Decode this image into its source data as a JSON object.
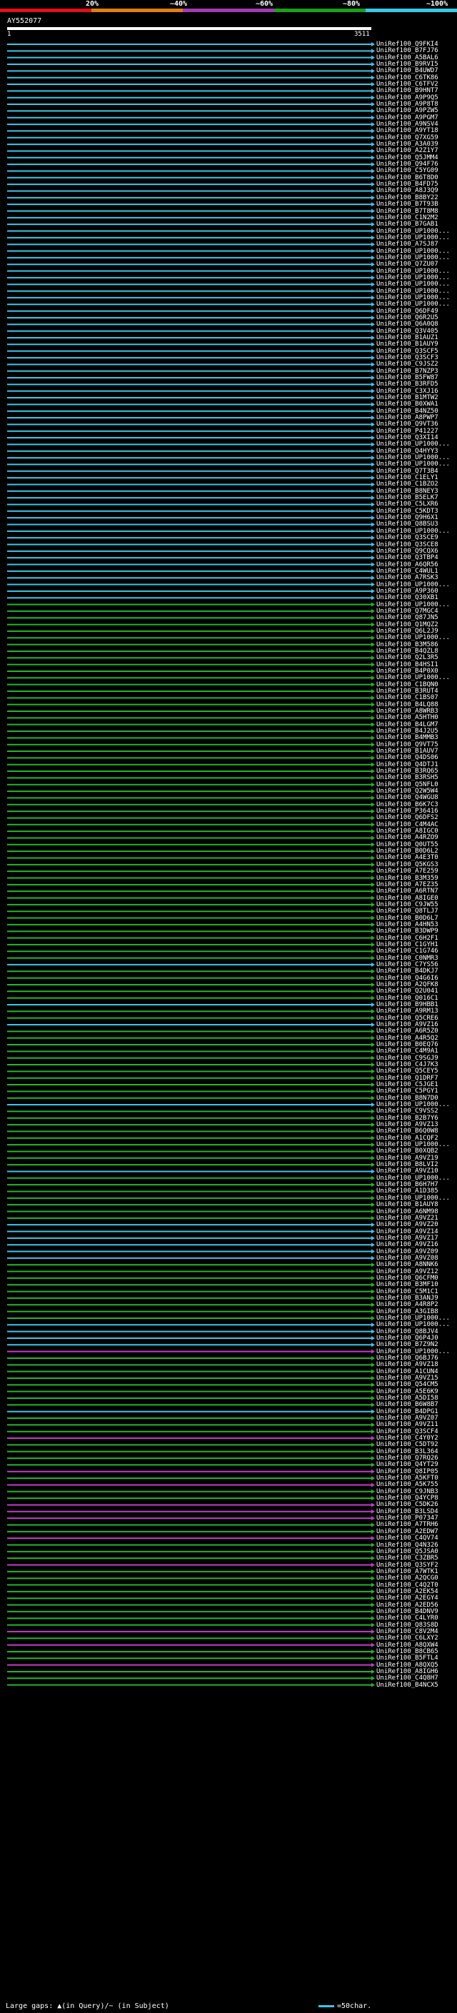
{
  "header": {
    "scale_labels": [
      "20%",
      "~40%",
      "~60%",
      "~80%",
      "~100%"
    ],
    "scale_colors": [
      "#e0111b",
      "#e07f10",
      "#a23cb4",
      "#1a9f1a",
      "#39c8e8"
    ]
  },
  "query": {
    "title": "AY552077",
    "start": "1",
    "end": "3511"
  },
  "colors": {
    "cyan": "#39c8e8",
    "green": "#22b62c",
    "magenta": "#c23cc8",
    "gray": "#555555"
  },
  "hits": [
    {
      "id": "UniRef100_Q9FKI4",
      "c": "cyan"
    },
    {
      "id": "UniRef100_B7FJ76",
      "c": "cyan"
    },
    {
      "id": "UniRef100_A5BAL6",
      "c": "cyan"
    },
    {
      "id": "UniRef100_B9RVI5",
      "c": "cyan"
    },
    {
      "id": "UniRef100_B4UWD7",
      "c": "cyan"
    },
    {
      "id": "UniRef100_C6TK86",
      "c": "cyan"
    },
    {
      "id": "UniRef100_C6TFV2",
      "c": "cyan"
    },
    {
      "id": "UniRef100_B9HNT7",
      "c": "cyan"
    },
    {
      "id": "UniRef100_A9P9Q5",
      "c": "cyan"
    },
    {
      "id": "UniRef100_A9P8T8",
      "c": "cyan"
    },
    {
      "id": "UniRef100_A9PZW5",
      "c": "cyan"
    },
    {
      "id": "UniRef100_A9PGM7",
      "c": "cyan"
    },
    {
      "id": "UniRef100_A9NSV4",
      "c": "cyan"
    },
    {
      "id": "UniRef100_A9YT18",
      "c": "cyan"
    },
    {
      "id": "UniRef100_Q7XG59",
      "c": "cyan"
    },
    {
      "id": "UniRef100_A3A039",
      "c": "cyan"
    },
    {
      "id": "UniRef100_A2Z1Y7",
      "c": "cyan"
    },
    {
      "id": "UniRef100_Q5JMM4",
      "c": "cyan"
    },
    {
      "id": "UniRef100_Q94F76",
      "c": "cyan"
    },
    {
      "id": "UniRef100_C5YG09",
      "c": "cyan"
    },
    {
      "id": "UniRef100_B6T8D0",
      "c": "cyan"
    },
    {
      "id": "UniRef100_B4FD75",
      "c": "cyan"
    },
    {
      "id": "UniRef100_A8J3Q9",
      "c": "cyan"
    },
    {
      "id": "UniRef100_B8BY22",
      "c": "cyan"
    },
    {
      "id": "UniRef100_B7T93B",
      "c": "cyan"
    },
    {
      "id": "UniRef100_B7T8M8",
      "c": "cyan"
    },
    {
      "id": "UniRef100_C1N2M2",
      "c": "cyan"
    },
    {
      "id": "UniRef100_B7GAB1",
      "c": "cyan"
    },
    {
      "id": "UniRef100_UP1000...",
      "c": "cyan"
    },
    {
      "id": "UniRef100_UP1000...",
      "c": "cyan"
    },
    {
      "id": "UniRef100_A7SJ87",
      "c": "cyan"
    },
    {
      "id": "UniRef100_UP1000...",
      "c": "cyan"
    },
    {
      "id": "UniRef100_UP1000...",
      "c": "cyan"
    },
    {
      "id": "UniRef100_Q7ZU07",
      "c": "cyan"
    },
    {
      "id": "UniRef100_UP1000...",
      "c": "cyan"
    },
    {
      "id": "UniRef100_UP1000...",
      "c": "cyan"
    },
    {
      "id": "UniRef100_UP1000...",
      "c": "cyan"
    },
    {
      "id": "UniRef100_UP1000...",
      "c": "cyan"
    },
    {
      "id": "UniRef100_UP1000...",
      "c": "cyan"
    },
    {
      "id": "UniRef100_UP1000...",
      "c": "cyan"
    },
    {
      "id": "UniRef100_Q6DF49",
      "c": "cyan"
    },
    {
      "id": "UniRef100_Q6R2U5",
      "c": "cyan"
    },
    {
      "id": "UniRef100_Q6A0Q8",
      "c": "cyan"
    },
    {
      "id": "UniRef100_Q3V405",
      "c": "cyan"
    },
    {
      "id": "UniRef100_B1AUZ1",
      "c": "cyan"
    },
    {
      "id": "UniRef100_B1AUY9",
      "c": "cyan"
    },
    {
      "id": "UniRef100_Q3SCF5",
      "c": "cyan"
    },
    {
      "id": "UniRef100_Q3SCF3",
      "c": "cyan"
    },
    {
      "id": "UniRef100_C9JSZ2",
      "c": "cyan"
    },
    {
      "id": "UniRef100_B7NZP3",
      "c": "cyan"
    },
    {
      "id": "UniRef100_B5FW87",
      "c": "cyan"
    },
    {
      "id": "UniRef100_B3RFD5",
      "c": "cyan"
    },
    {
      "id": "UniRef100_C3XJ16",
      "c": "cyan"
    },
    {
      "id": "UniRef100_B1MTW2",
      "c": "cyan"
    },
    {
      "id": "UniRef100_B0XWA1",
      "c": "cyan"
    },
    {
      "id": "UniRef100_B4NZ50",
      "c": "cyan"
    },
    {
      "id": "UniRef100_A8PWP7",
      "c": "cyan"
    },
    {
      "id": "UniRef100_Q9VT36",
      "c": "cyan"
    },
    {
      "id": "UniRef100_P41227",
      "c": "cyan"
    },
    {
      "id": "UniRef100_Q3XI14",
      "c": "cyan"
    },
    {
      "id": "UniRef100_UP1000...",
      "c": "cyan"
    },
    {
      "id": "UniRef100_Q4HYY3",
      "c": "cyan"
    },
    {
      "id": "UniRef100_UP1000...",
      "c": "cyan"
    },
    {
      "id": "UniRef100_UP1000...",
      "c": "cyan"
    },
    {
      "id": "UniRef100_Q7T3B4",
      "c": "cyan"
    },
    {
      "id": "UniRef100_C1ELY1",
      "c": "cyan"
    },
    {
      "id": "UniRef100_C1BZO2",
      "c": "cyan"
    },
    {
      "id": "UniRef100_B8NEY3",
      "c": "cyan"
    },
    {
      "id": "UniRef100_B5ELK7",
      "c": "cyan"
    },
    {
      "id": "UniRef100_C5LXR6",
      "c": "cyan"
    },
    {
      "id": "UniRef100_C5KDT3",
      "c": "cyan"
    },
    {
      "id": "UniRef100_Q9H6X1",
      "c": "cyan"
    },
    {
      "id": "UniRef100_Q8BSU3",
      "c": "cyan"
    },
    {
      "id": "UniRef100_UP1000...",
      "c": "cyan"
    },
    {
      "id": "UniRef100_Q3SCE9",
      "c": "cyan"
    },
    {
      "id": "UniRef100_Q3SCE8",
      "c": "cyan"
    },
    {
      "id": "UniRef100_Q9CQX6",
      "c": "cyan"
    },
    {
      "id": "UniRef100_Q3TBP4",
      "c": "cyan"
    },
    {
      "id": "UniRef100_A6QR56",
      "c": "cyan"
    },
    {
      "id": "UniRef100_C4WUL1",
      "c": "cyan"
    },
    {
      "id": "UniRef100_A7RSK3",
      "c": "cyan"
    },
    {
      "id": "UniRef100_UP1000...",
      "c": "cyan"
    },
    {
      "id": "UniRef100_A9P360",
      "c": "cyan"
    },
    {
      "id": "UniRef100_Q30XB1",
      "c": "cyan"
    },
    {
      "id": "UniRef100_UP1000...",
      "c": "green"
    },
    {
      "id": "UniRef100_Q7MGC4",
      "c": "green"
    },
    {
      "id": "UniRef100_Q87JN5",
      "c": "green"
    },
    {
      "id": "UniRef100_Q1MQZ2",
      "c": "green"
    },
    {
      "id": "UniRef100_Q6L2J9",
      "c": "green"
    },
    {
      "id": "UniRef100_UP1000...",
      "c": "green"
    },
    {
      "id": "UniRef100_B3M586",
      "c": "green"
    },
    {
      "id": "UniRef100_B4QZL8",
      "c": "green"
    },
    {
      "id": "UniRef100_Q2L3R5",
      "c": "green"
    },
    {
      "id": "UniRef100_B4HSI1",
      "c": "green"
    },
    {
      "id": "UniRef100_B4P0X0",
      "c": "green"
    },
    {
      "id": "UniRef100_UP1000...",
      "c": "green"
    },
    {
      "id": "UniRef100_C1BQN0",
      "c": "green"
    },
    {
      "id": "UniRef100_B3RUT4",
      "c": "green"
    },
    {
      "id": "UniRef100_C1BS07",
      "c": "green"
    },
    {
      "id": "UniRef100_B4LQ88",
      "c": "green"
    },
    {
      "id": "UniRef100_A8WRB3",
      "c": "green"
    },
    {
      "id": "UniRef100_A5HTH0",
      "c": "green"
    },
    {
      "id": "UniRef100_B4LGM7",
      "c": "green"
    },
    {
      "id": "UniRef100_B4J2U5",
      "c": "green"
    },
    {
      "id": "UniRef100_B4MMB3",
      "c": "green"
    },
    {
      "id": "UniRef100_Q9VT75",
      "c": "green"
    },
    {
      "id": "UniRef100_B1AUV7",
      "c": "green"
    },
    {
      "id": "UniRef100_Q4DS06",
      "c": "green"
    },
    {
      "id": "UniRef100_Q4DTJ1",
      "c": "green"
    },
    {
      "id": "UniRef100_B3RQ65",
      "c": "green"
    },
    {
      "id": "UniRef100_B3RSH5",
      "c": "green"
    },
    {
      "id": "UniRef100_Q5NFL0",
      "c": "green"
    },
    {
      "id": "UniRef100_Q2W5W4",
      "c": "green"
    },
    {
      "id": "UniRef100_Q4WGU8",
      "c": "green"
    },
    {
      "id": "UniRef100_B6K7C3",
      "c": "green"
    },
    {
      "id": "UniRef100_P36416",
      "c": "green"
    },
    {
      "id": "UniRef100_Q6DFS2",
      "c": "green"
    },
    {
      "id": "UniRef100_C4M4AC",
      "c": "green"
    },
    {
      "id": "UniRef100_A8IGC0",
      "c": "green"
    },
    {
      "id": "UniRef100_A4RZO9",
      "c": "green"
    },
    {
      "id": "UniRef100_Q0UT55",
      "c": "green"
    },
    {
      "id": "UniRef100_B0D6L2",
      "c": "green"
    },
    {
      "id": "UniRef100_A4E3T0",
      "c": "green"
    },
    {
      "id": "UniRef100_Q5KGS3",
      "c": "green"
    },
    {
      "id": "UniRef100_A7E259",
      "c": "green"
    },
    {
      "id": "UniRef100_B3M359",
      "c": "green"
    },
    {
      "id": "UniRef100_A7EZ35",
      "c": "green"
    },
    {
      "id": "UniRef100_A6RTN7",
      "c": "green"
    },
    {
      "id": "UniRef100_A8IGE0",
      "c": "green"
    },
    {
      "id": "UniRef100_C9JW55",
      "c": "green"
    },
    {
      "id": "UniRef100_Q8TLJ7",
      "c": "green"
    },
    {
      "id": "UniRef100_B0D6L7",
      "c": "green"
    },
    {
      "id": "UniRef100_A4HN53",
      "c": "green"
    },
    {
      "id": "UniRef100_B3DWP9",
      "c": "green"
    },
    {
      "id": "UniRef100_C6H2F1",
      "c": "green"
    },
    {
      "id": "UniRef100_C1GYH1",
      "c": "green"
    },
    {
      "id": "UniRef100_C1G746",
      "c": "green"
    },
    {
      "id": "UniRef100_C0NMR3",
      "c": "green"
    },
    {
      "id": "UniRef100_C7YS56",
      "c": "cyan"
    },
    {
      "id": "UniRef100_B4DKJ7",
      "c": "green"
    },
    {
      "id": "UniRef100_Q4G6I6",
      "c": "green"
    },
    {
      "id": "UniRef100_A2QFK8",
      "c": "green"
    },
    {
      "id": "UniRef100_Q2U041",
      "c": "green"
    },
    {
      "id": "UniRef100_Q016C1",
      "c": "green"
    },
    {
      "id": "UniRef100_B9HBB1",
      "c": "cyan"
    },
    {
      "id": "UniRef100_A9RM13",
      "c": "green"
    },
    {
      "id": "UniRef100_Q5CRE6",
      "c": "green"
    },
    {
      "id": "UniRef100_A9VZ16",
      "c": "cyan"
    },
    {
      "id": "UniRef100_A6R5Z0",
      "c": "green"
    },
    {
      "id": "UniRef100_A4R5Q2",
      "c": "green"
    },
    {
      "id": "UniRef100_B0EQ76",
      "c": "green"
    },
    {
      "id": "UniRef100_C4M9A1",
      "c": "green"
    },
    {
      "id": "UniRef100_C9SGJ9",
      "c": "green"
    },
    {
      "id": "UniRef100_C4J7K3",
      "c": "green"
    },
    {
      "id": "UniRef100_Q5CEY5",
      "c": "green"
    },
    {
      "id": "UniRef100_Q1DRF7",
      "c": "green"
    },
    {
      "id": "UniRef100_C5JGE1",
      "c": "green"
    },
    {
      "id": "UniRef100_C5PGY1",
      "c": "green"
    },
    {
      "id": "UniRef100_B8N7D0",
      "c": "green"
    },
    {
      "id": "UniRef100_UP1000...",
      "c": "cyan"
    },
    {
      "id": "UniRef100_C9VSS2",
      "c": "green"
    },
    {
      "id": "UniRef100_B2B7Y6",
      "c": "green"
    },
    {
      "id": "UniRef100_A9VZ13",
      "c": "green"
    },
    {
      "id": "UniRef100_B6Q0W8",
      "c": "green"
    },
    {
      "id": "UniRef100_A1CQF2",
      "c": "green"
    },
    {
      "id": "UniRef100_UP1000...",
      "c": "green"
    },
    {
      "id": "UniRef100_B0XQB2",
      "c": "green"
    },
    {
      "id": "UniRef100_A9VZ19",
      "c": "green"
    },
    {
      "id": "UniRef100_B8LVI2",
      "c": "green"
    },
    {
      "id": "UniRef100_A9VZ10",
      "c": "cyan"
    },
    {
      "id": "UniRef100_UP1000...",
      "c": "green"
    },
    {
      "id": "UniRef100_B6H7H7",
      "c": "green"
    },
    {
      "id": "UniRef100_A1D385",
      "c": "green"
    },
    {
      "id": "UniRef100_UP1000...",
      "c": "green"
    },
    {
      "id": "UniRef100_B1AUY8",
      "c": "green"
    },
    {
      "id": "UniRef100_A6NM98",
      "c": "green"
    },
    {
      "id": "UniRef100_A9VZ21",
      "c": "green"
    },
    {
      "id": "UniRef100_A9VZ20",
      "c": "cyan"
    },
    {
      "id": "UniRef100_A9VZ14",
      "c": "cyan"
    },
    {
      "id": "UniRef100_A9VZ17",
      "c": "cyan"
    },
    {
      "id": "UniRef100_A9VZ16",
      "c": "cyan"
    },
    {
      "id": "UniRef100_A9VZ09",
      "c": "cyan"
    },
    {
      "id": "UniRef100_A9VZ08",
      "c": "cyan"
    },
    {
      "id": "UniRef100_A8NNK6",
      "c": "green"
    },
    {
      "id": "UniRef100_A9VZ12",
      "c": "green"
    },
    {
      "id": "UniRef100_Q6CFM0",
      "c": "green"
    },
    {
      "id": "UniRef100_B3MF10",
      "c": "green"
    },
    {
      "id": "UniRef100_C5M1C1",
      "c": "green"
    },
    {
      "id": "UniRef100_B3ANJ9",
      "c": "green"
    },
    {
      "id": "UniRef100_A4R8P2",
      "c": "green"
    },
    {
      "id": "UniRef100_A3GIB8",
      "c": "green"
    },
    {
      "id": "UniRef100_UP1000...",
      "c": "green"
    },
    {
      "id": "UniRef100_UP1000...",
      "c": "cyan"
    },
    {
      "id": "UniRef100_Q8BJV4",
      "c": "cyan"
    },
    {
      "id": "UniRef100_Q6P4J0",
      "c": "cyan"
    },
    {
      "id": "UniRef100_B7Z9N2",
      "c": "cyan"
    },
    {
      "id": "UniRef100_UP1000...",
      "c": "magenta"
    },
    {
      "id": "UniRef100_Q6BJ76",
      "c": "green"
    },
    {
      "id": "UniRef100_A9VZ18",
      "c": "green"
    },
    {
      "id": "UniRef100_A1CUN4",
      "c": "green"
    },
    {
      "id": "UniRef100_A9VZ15",
      "c": "green"
    },
    {
      "id": "UniRef100_Q54CM5",
      "c": "green"
    },
    {
      "id": "UniRef100_A5E6K9",
      "c": "green"
    },
    {
      "id": "UniRef100_A5DI58",
      "c": "green"
    },
    {
      "id": "UniRef100_B6W8B7",
      "c": "green"
    },
    {
      "id": "UniRef100_B4DPG1",
      "c": "cyan"
    },
    {
      "id": "UniRef100_A9VZ07",
      "c": "green"
    },
    {
      "id": "UniRef100_A9VZ11",
      "c": "green"
    },
    {
      "id": "UniRef100_Q3SCF4",
      "c": "green"
    },
    {
      "id": "UniRef100_C4Y0Y2",
      "c": "magenta"
    },
    {
      "id": "UniRef100_C5DT92",
      "c": "green"
    },
    {
      "id": "UniRef100_B3L364",
      "c": "green"
    },
    {
      "id": "UniRef100_Q7RQ26",
      "c": "green"
    },
    {
      "id": "UniRef100_Q4YT29",
      "c": "green"
    },
    {
      "id": "UniRef100_Q8IP05",
      "c": "magenta"
    },
    {
      "id": "UniRef100_A5KFT0",
      "c": "green"
    },
    {
      "id": "UniRef100_A5K755",
      "c": "magenta"
    },
    {
      "id": "UniRef100_C9JNB3",
      "c": "green"
    },
    {
      "id": "UniRef100_Q4YCP8",
      "c": "green"
    },
    {
      "id": "UniRef100_C5DK26",
      "c": "magenta"
    },
    {
      "id": "UniRef100_B3LSD4",
      "c": "magenta"
    },
    {
      "id": "UniRef100_P07347",
      "c": "magenta"
    },
    {
      "id": "UniRef100_A7TRH6",
      "c": "green"
    },
    {
      "id": "UniRef100_A2EDW7",
      "c": "green"
    },
    {
      "id": "UniRef100_C4QV74",
      "c": "magenta"
    },
    {
      "id": "UniRef100_Q4N326",
      "c": "green"
    },
    {
      "id": "UniRef100_Q5JSA0",
      "c": "green"
    },
    {
      "id": "UniRef100_C3ZBR5",
      "c": "green"
    },
    {
      "id": "UniRef100_Q3SYF2",
      "c": "magenta"
    },
    {
      "id": "UniRef100_A7WTK1",
      "c": "green"
    },
    {
      "id": "UniRef100_A2QCG0",
      "c": "green"
    },
    {
      "id": "UniRef100_C4Q2T0",
      "c": "green"
    },
    {
      "id": "UniRef100_A2EK54",
      "c": "green"
    },
    {
      "id": "UniRef100_A2EGY4",
      "c": "green"
    },
    {
      "id": "UniRef100_A2ED56",
      "c": "green"
    },
    {
      "id": "UniRef100_B4DNV9",
      "c": "green"
    },
    {
      "id": "UniRef100_C4LYR0",
      "c": "green"
    },
    {
      "id": "UniRef100_Q83S8D",
      "c": "green"
    },
    {
      "id": "UniRef100_C8V2M4",
      "c": "magenta"
    },
    {
      "id": "UniRef100_C6LXY2",
      "c": "green"
    },
    {
      "id": "UniRef100_A8QXW4",
      "c": "magenta"
    },
    {
      "id": "UniRef100_B8CB65",
      "c": "green"
    },
    {
      "id": "UniRef100_B5FTL4",
      "c": "green"
    },
    {
      "id": "UniRef100_A8QXQ5",
      "c": "magenta"
    },
    {
      "id": "UniRef100_A8IGH6",
      "c": "green"
    },
    {
      "id": "UniRef100_C4Q8H7",
      "c": "green"
    },
    {
      "id": "UniRef100_B4NCX5",
      "c": "green"
    }
  ],
  "footer": {
    "left_text": "Large gaps: ▲(in Query)/~ (in Subject)",
    "right_text": "=50char."
  }
}
